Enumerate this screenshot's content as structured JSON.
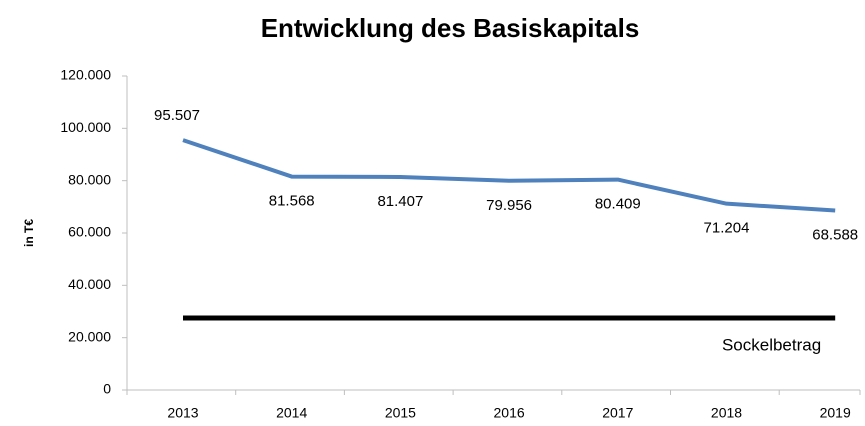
{
  "chart_data": {
    "type": "line",
    "title": "Entwicklung des Basiskapitals",
    "ylabel": "in T€",
    "categories": [
      "2013",
      "2014",
      "2015",
      "2016",
      "2017",
      "2018",
      "2019"
    ],
    "series": [
      {
        "name": "Basiskapital",
        "color": "#4f81bd",
        "values": [
          95507,
          81568,
          81407,
          79956,
          80409,
          71204,
          68588
        ],
        "value_labels": [
          "95.507",
          "81.568",
          "81.407",
          "79.956",
          "80.409",
          "71.204",
          "68.588"
        ]
      }
    ],
    "reference_line": {
      "label": "Sockelbetrag",
      "value": 27500,
      "color": "#000000"
    },
    "ylim": [
      0,
      120000
    ],
    "yticks": [
      0,
      {
        "value": 20000,
        "label": "20.000"
      },
      {
        "value": 40000,
        "label": "40.000"
      },
      {
        "value": 60000,
        "label": "60.000"
      },
      {
        "value": 80000,
        "label": "80.000"
      },
      {
        "value": 100000,
        "label": "100.000"
      },
      {
        "value": 120000,
        "label": "120.000"
      }
    ],
    "grid": false
  }
}
